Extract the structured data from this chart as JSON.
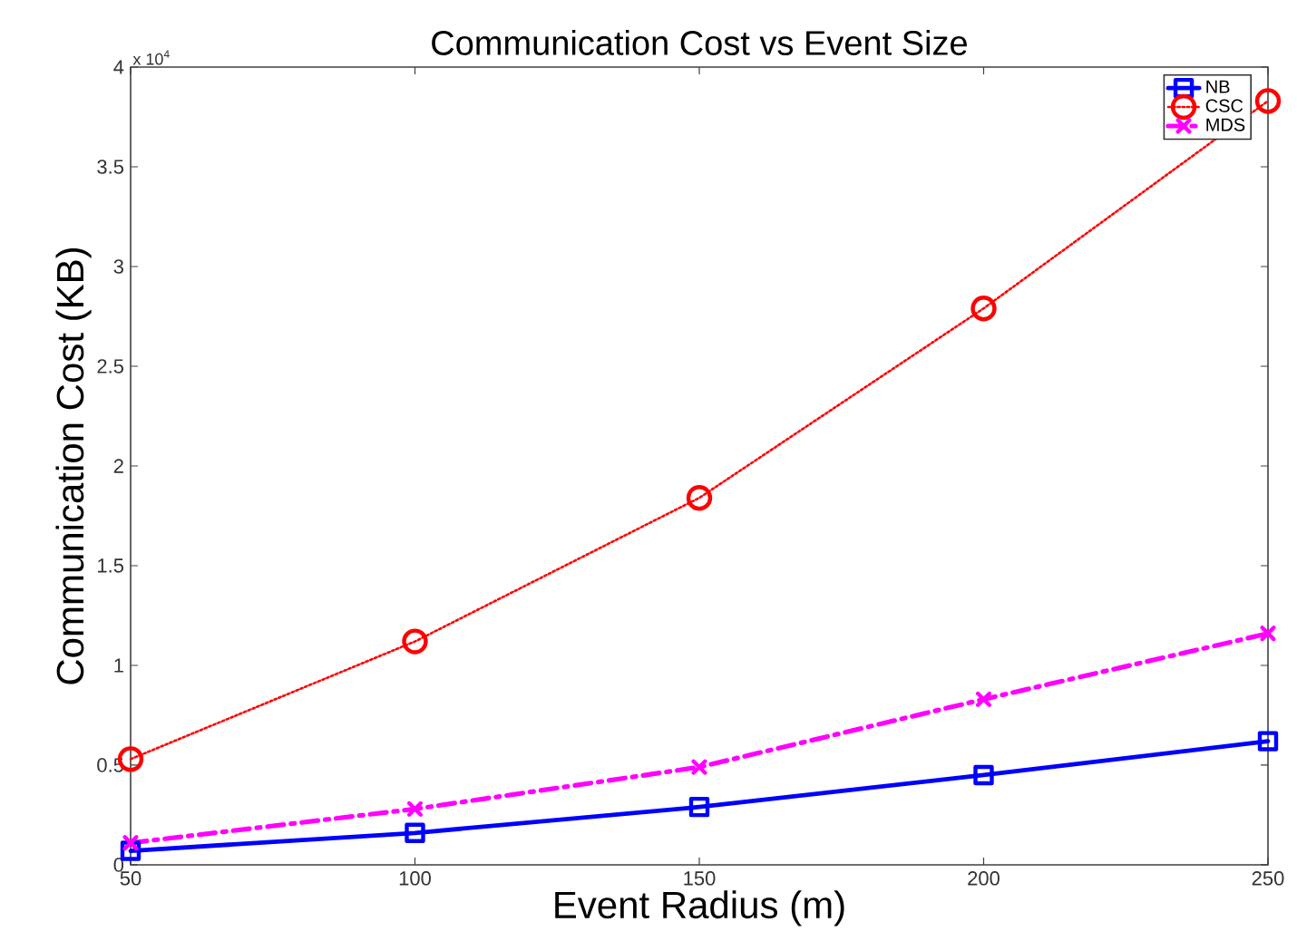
{
  "chart_data": {
    "type": "line",
    "title": "Communication Cost vs Event Size",
    "xlabel": "Event Radius (m)",
    "ylabel": "Communication Cost (KB)",
    "annotations": [
      "x 10$^{4}$"
    ],
    "x": [
      50,
      100,
      150,
      200,
      250
    ],
    "series": [
      {
        "name": "NB",
        "color": "#0000ff",
        "values": [
          0.07,
          0.16,
          0.29,
          0.45,
          0.62
        ],
        "marker": "square",
        "line_style": "solid"
      },
      {
        "name": "CSC",
        "color": "#ff0000",
        "values": [
          0.53,
          1.12,
          1.84,
          2.79,
          3.83
        ],
        "marker": "circle",
        "line_style": "dotted"
      },
      {
        "name": "MDS",
        "color": "#ff00ff",
        "values": [
          0.11,
          0.28,
          0.49,
          0.83,
          1.16
        ],
        "marker": "cross",
        "line_style": "dashdot"
      }
    ],
    "xlim": [
      50,
      250
    ],
    "ylim": [
      0,
      4
    ],
    "xticks": [
      50,
      100,
      150,
      200,
      250
    ],
    "yticks": [
      0,
      0.5,
      1,
      1.5,
      2,
      2.5,
      3,
      3.5,
      4
    ],
    "legend": "top right"
  }
}
